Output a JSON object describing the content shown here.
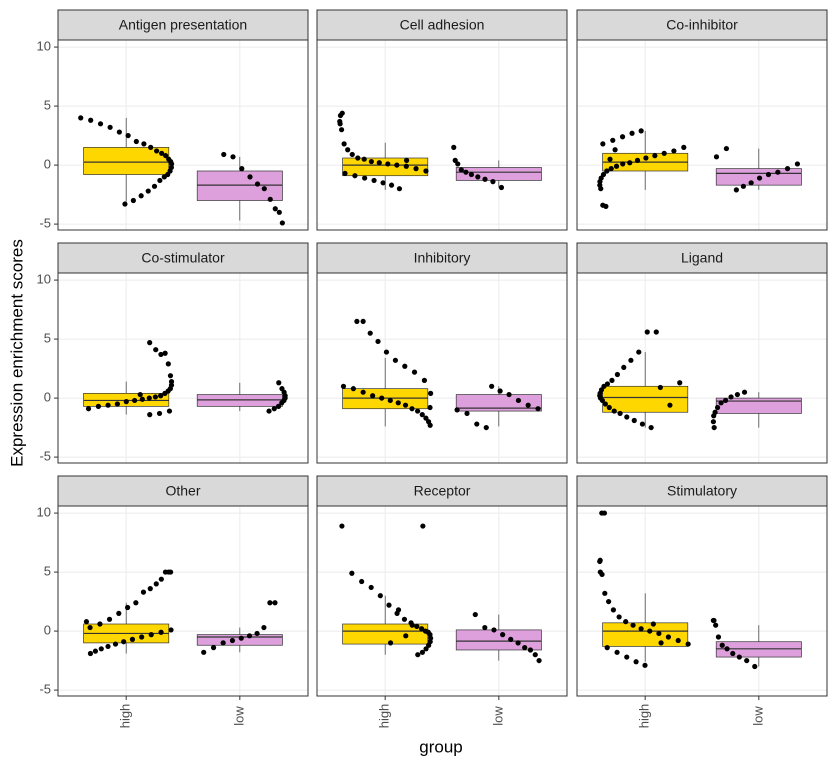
{
  "chart_data": {
    "type": "box",
    "ylabel": "Expression enrichment scores",
    "xlabel": "group",
    "categories": [
      "high",
      "low"
    ],
    "colors": [
      "#FFD700",
      "#DDA0DD"
    ],
    "ylim": [
      -5.5,
      10.6
    ],
    "yticks": [
      -5,
      0,
      5,
      10
    ],
    "grid": true,
    "facets": [
      {
        "title": "Antigen presentation",
        "boxes": [
          {
            "whisker_low": -3.1,
            "q1": -0.8,
            "median": 0.25,
            "q3": 1.5,
            "whisker_high": 4.0,
            "points": [
              4.0,
              3.8,
              3.5,
              3.2,
              2.8,
              2.5,
              2.0,
              1.8,
              1.5,
              1.2,
              1.0,
              0.8,
              0.5,
              0.3,
              0.1,
              -0.2,
              -0.5,
              -0.8,
              -1.0,
              -1.3,
              -1.8,
              -2.2,
              -2.6,
              -3.0,
              -3.3
            ]
          },
          {
            "whisker_low": -4.7,
            "q1": -3.0,
            "median": -1.7,
            "q3": -0.5,
            "whisker_high": 0.7,
            "points": [
              0.9,
              0.7,
              -0.3,
              -1.0,
              -1.6,
              -2.0,
              -2.9,
              -3.7,
              -4.0,
              -4.9
            ]
          }
        ]
      },
      {
        "title": "Cell adhesion",
        "boxes": [
          {
            "whisker_low": -2.1,
            "q1": -0.9,
            "median": 0,
            "q3": 0.6,
            "whisker_high": 1.9,
            "points": [
              4.4,
              4.2,
              3.7,
              3.5,
              3.0,
              1.8,
              1.3,
              0.9,
              0.6,
              0.5,
              0.3,
              0.2,
              0.1,
              0,
              -0.1,
              -0.3,
              -0.5,
              -0.7,
              -0.9,
              -1.1,
              -1.3,
              -1.5,
              -1.7,
              -2.0,
              0.4
            ]
          },
          {
            "whisker_low": -1.9,
            "q1": -1.3,
            "median": -0.6,
            "q3": -0.2,
            "whisker_high": 0.4,
            "points": [
              1.5,
              0.4,
              0.1,
              -0.4,
              -0.6,
              -0.8,
              -1.0,
              -1.2,
              -1.4,
              -1.9
            ]
          }
        ]
      },
      {
        "title": "Co-inhibitor",
        "boxes": [
          {
            "whisker_low": -2.1,
            "q1": -0.5,
            "median": 0.25,
            "q3": 1.0,
            "whisker_high": 2.9,
            "points": [
              2.9,
              2.7,
              2.4,
              2.1,
              1.8,
              1.5,
              1.2,
              1.0,
              0.8,
              0.6,
              0.4,
              0.2,
              0.1,
              -0.1,
              -0.3,
              -0.5,
              -0.8,
              -1.1,
              -1.4,
              -1.7,
              -2.0,
              -3.4,
              -3.5,
              0.5,
              1.3
            ]
          },
          {
            "whisker_low": -2.1,
            "q1": -1.7,
            "median": -0.7,
            "q3": -0.3,
            "whisker_high": 1.4,
            "points": [
              1.4,
              0.7,
              0.1,
              -0.3,
              -0.6,
              -0.8,
              -1.1,
              -1.5,
              -1.8,
              -2.1
            ]
          }
        ]
      },
      {
        "title": "Co-stimulator",
        "boxes": [
          {
            "whisker_low": -1.4,
            "q1": -0.7,
            "median": -0.2,
            "q3": 0.4,
            "whisker_high": 1.4,
            "points": [
              4.7,
              4.1,
              3.7,
              3.8,
              2.9,
              1.9,
              1.4,
              1.1,
              0.8,
              0.6,
              0.4,
              0.2,
              0.1,
              0,
              -0.1,
              -0.2,
              -0.3,
              -0.5,
              -0.6,
              -0.7,
              -0.9,
              -1.1,
              -1.3,
              -1.4,
              0.3
            ]
          },
          {
            "whisker_low": -1.1,
            "q1": -0.7,
            "median": -0.15,
            "q3": 0.3,
            "whisker_high": 1.3,
            "points": [
              1.3,
              0.8,
              0.5,
              0.2,
              0,
              -0.2,
              -0.4,
              -0.7,
              -0.9,
              -1.1
            ]
          }
        ]
      },
      {
        "title": "Inhibitory",
        "boxes": [
          {
            "whisker_low": -2.4,
            "q1": -0.9,
            "median": 0,
            "q3": 0.8,
            "whisker_high": 3.4,
            "points": [
              6.5,
              6.5,
              5.5,
              4.8,
              3.9,
              3.2,
              2.7,
              2.2,
              1.5,
              1.0,
              0.8,
              0.5,
              0.2,
              0,
              -0.2,
              -0.4,
              -0.6,
              -0.9,
              -1.1,
              -1.4,
              -1.7,
              -2.0,
              -2.3,
              0.4,
              -0.8
            ]
          },
          {
            "whisker_low": -2.4,
            "q1": -1.1,
            "median": -0.85,
            "q3": 0.3,
            "whisker_high": 1.0,
            "points": [
              1.0,
              0.6,
              0.3,
              -0.2,
              -0.6,
              -0.9,
              -1.0,
              -1.3,
              -2.2,
              -2.5
            ]
          }
        ]
      },
      {
        "title": "Ligand",
        "boxes": [
          {
            "whisker_low": -2.5,
            "q1": -1.2,
            "median": 0.05,
            "q3": 1.0,
            "whisker_high": 3.9,
            "points": [
              5.6,
              5.6,
              3.9,
              3.2,
              2.6,
              2.0,
              1.5,
              1.2,
              1.0,
              0.7,
              0.4,
              0.2,
              0,
              -0.2,
              -0.5,
              -0.8,
              -1.1,
              -1.3,
              -1.6,
              -1.9,
              -2.2,
              -2.5,
              0.9,
              -0.6,
              1.3
            ]
          },
          {
            "whisker_low": -2.5,
            "q1": -1.3,
            "median": -0.25,
            "q3": 0,
            "whisker_high": 0.5,
            "points": [
              0.5,
              0.3,
              0.1,
              -0.2,
              -0.4,
              -0.8,
              -1.2,
              -1.5,
              -2.0,
              -2.5
            ]
          }
        ]
      },
      {
        "title": "Other",
        "boxes": [
          {
            "whisker_low": -1.9,
            "q1": -1.0,
            "median": -0.2,
            "q3": 0.6,
            "whisker_high": 2.4,
            "points": [
              5.0,
              5.0,
              5.0,
              4.4,
              4.0,
              3.6,
              3.3,
              2.4,
              2.0,
              1.5,
              1.0,
              0.6,
              0.3,
              0.1,
              -0.1,
              -0.3,
              -0.5,
              -0.7,
              -0.9,
              -1.1,
              -1.3,
              -1.5,
              -1.7,
              -1.9,
              0.8
            ]
          },
          {
            "whisker_low": -1.8,
            "q1": -1.2,
            "median": -0.5,
            "q3": -0.3,
            "whisker_high": 0.3,
            "points": [
              2.4,
              2.4,
              0.3,
              -0.2,
              -0.4,
              -0.6,
              -0.8,
              -1.0,
              -1.4,
              -1.8
            ]
          }
        ]
      },
      {
        "title": "Receptor",
        "boxes": [
          {
            "whisker_low": -2.0,
            "q1": -1.1,
            "median": 0,
            "q3": 0.6,
            "whisker_high": 3.0,
            "points": [
              8.9,
              8.9,
              4.9,
              4.2,
              3.7,
              3.0,
              2.2,
              1.5,
              1.0,
              0.7,
              0.4,
              0.2,
              0,
              -0.1,
              -0.3,
              -0.6,
              -0.9,
              -1.2,
              -1.5,
              -1.8,
              -2.0,
              0.5,
              -0.4,
              1.8,
              -1.0
            ]
          },
          {
            "whisker_low": -2.5,
            "q1": -1.6,
            "median": -0.85,
            "q3": 0.1,
            "whisker_high": 1.4,
            "points": [
              1.4,
              0.3,
              0.1,
              -0.3,
              -0.7,
              -1.0,
              -1.4,
              -1.6,
              -2.0,
              -2.5
            ]
          }
        ]
      },
      {
        "title": "Stimulatory",
        "boxes": [
          {
            "whisker_low": -2.6,
            "q1": -1.3,
            "median": 0,
            "q3": 0.7,
            "whisker_high": 3.2,
            "points": [
              10,
              10,
              6.0,
              5.9,
              5.0,
              4.8,
              3.2,
              2.5,
              1.8,
              1.2,
              0.8,
              0.5,
              0.2,
              0,
              -0.2,
              -0.5,
              -0.8,
              -1.1,
              -1.4,
              -1.8,
              -2.2,
              -2.6,
              -2.9,
              0.6,
              -1.0
            ]
          },
          {
            "whisker_low": -3.0,
            "q1": -2.2,
            "median": -1.5,
            "q3": -0.9,
            "whisker_high": 0.5,
            "points": [
              0.9,
              0.9,
              0.5,
              -0.5,
              -1.2,
              -1.5,
              -1.9,
              -2.2,
              -2.5,
              -3.0
            ]
          }
        ]
      }
    ]
  }
}
